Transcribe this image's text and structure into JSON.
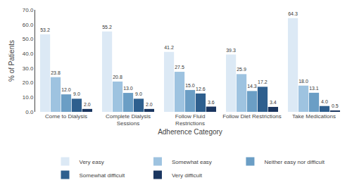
{
  "chart_data": {
    "type": "bar",
    "categories": [
      "Come to Dialysis",
      "Complete Dialysis\nSessions",
      "Follow Fluid\nRestrictions",
      "Follow Diet Restrictions",
      "Take Medications"
    ],
    "series": [
      {
        "name": "Very easy",
        "color": "#dce9f5",
        "values": [
          53.2,
          55.2,
          41.2,
          39.3,
          64.3
        ],
        "value_labels": [
          "53.2",
          "55.2",
          "41.2",
          "39.3",
          "64.3"
        ]
      },
      {
        "name": "Somewhat easy",
        "color": "#9ec3e0",
        "values": [
          23.8,
          20.8,
          27.5,
          25.9,
          18.0
        ],
        "value_labels": [
          "23.8",
          "20.8",
          "27.5",
          "25.9",
          "18.0"
        ]
      },
      {
        "name": "Neither easy nor difficult",
        "color": "#6b9ec5",
        "values": [
          12.0,
          13.0,
          15.0,
          14.3,
          13.1
        ],
        "value_labels": [
          "12.0",
          "13.0",
          "15.0",
          "14.3",
          "13.1"
        ]
      },
      {
        "name": "Somewhat difficult",
        "color": "#2e5f8e",
        "values": [
          9.0,
          9.0,
          12.6,
          17.2,
          4.0
        ],
        "value_labels": [
          "9.0",
          "9.0",
          "12.6",
          "17.2",
          "4.0"
        ]
      },
      {
        "name": "Very difficult",
        "color": "#1a3660",
        "values": [
          2.0,
          2.0,
          3.6,
          3.4,
          0.5
        ],
        "value_labels": [
          "2.0",
          "2.0",
          "3.6",
          "3.4",
          "0.5"
        ]
      }
    ],
    "xlabel": "Adherence Category",
    "ylabel": "% of Patients",
    "ylim": [
      0,
      70
    ],
    "yticks": [
      {
        "value": 0,
        "label": "0.0"
      },
      {
        "value": 10,
        "label": "10.0"
      },
      {
        "value": 20,
        "label": "20.0"
      },
      {
        "value": 30,
        "label": "30.0"
      },
      {
        "value": 40,
        "label": "40.0"
      },
      {
        "value": 50,
        "label": "50.0"
      },
      {
        "value": 60,
        "label": "60.0"
      },
      {
        "value": 70,
        "label": "70.0"
      }
    ],
    "grid": false,
    "legend": "bottom",
    "data_labels": true
  }
}
